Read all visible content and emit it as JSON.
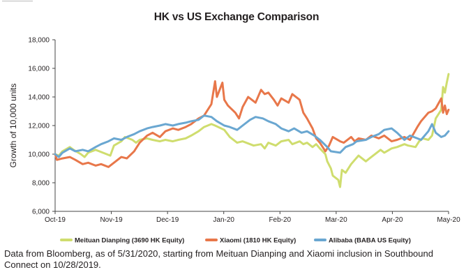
{
  "chart_data": {
    "type": "line",
    "title": "HK vs US Exchange Comparison",
    "ylabel": "Growth of 10,000 units",
    "xlabel": "",
    "ylim": [
      6000,
      18000
    ],
    "yticks": [
      "6,000",
      "8,000",
      "10,000",
      "12,000",
      "14,000",
      "16,000",
      "18,000"
    ],
    "xticks": [
      "Oct-19",
      "Nov-19",
      "Dec-19",
      "Jan-20",
      "Feb-20",
      "Mar-20",
      "Apr-20",
      "May-20"
    ],
    "x_start": "2019-10-28",
    "x_end": "2020-05-29",
    "legend_position": "bottom",
    "grid": false,
    "series": [
      {
        "name": "Meituan Dianping (3690 HK Equity)",
        "color": "#cfdd6e",
        "points": [
          [
            "2019-10-28",
            10000
          ],
          [
            "2019-10-30",
            9900
          ],
          [
            "2019-11-01",
            10200
          ],
          [
            "2019-11-05",
            10500
          ],
          [
            "2019-11-07",
            10300
          ],
          [
            "2019-11-11",
            10000
          ],
          [
            "2019-11-13",
            9800
          ],
          [
            "2019-11-15",
            10100
          ],
          [
            "2019-11-19",
            10300
          ],
          [
            "2019-11-21",
            10200
          ],
          [
            "2019-11-25",
            10000
          ],
          [
            "2019-11-27",
            9900
          ],
          [
            "2019-11-29",
            10600
          ],
          [
            "2019-12-03",
            10900
          ],
          [
            "2019-12-05",
            11200
          ],
          [
            "2019-12-09",
            11000
          ],
          [
            "2019-12-11",
            10800
          ],
          [
            "2019-12-13",
            11000
          ],
          [
            "2019-12-17",
            11100
          ],
          [
            "2019-12-20",
            11000
          ],
          [
            "2019-12-24",
            10900
          ],
          [
            "2019-12-27",
            11000
          ],
          [
            "2019-12-31",
            10900
          ],
          [
            "2020-01-03",
            11000
          ],
          [
            "2020-01-07",
            11100
          ],
          [
            "2020-01-10",
            11300
          ],
          [
            "2020-01-14",
            11600
          ],
          [
            "2020-01-17",
            11900
          ],
          [
            "2020-01-21",
            12100
          ],
          [
            "2020-01-23",
            12000
          ],
          [
            "2020-01-28",
            11700
          ],
          [
            "2020-01-31",
            11200
          ],
          [
            "2020-02-04",
            10800
          ],
          [
            "2020-02-07",
            10900
          ],
          [
            "2020-02-11",
            10700
          ],
          [
            "2020-02-13",
            10600
          ],
          [
            "2020-02-17",
            10700
          ],
          [
            "2020-02-19",
            10400
          ],
          [
            "2020-02-21",
            10800
          ],
          [
            "2020-02-25",
            10600
          ],
          [
            "2020-02-28",
            10900
          ],
          [
            "2020-03-03",
            11000
          ],
          [
            "2020-03-05",
            10700
          ],
          [
            "2020-03-09",
            10900
          ],
          [
            "2020-03-11",
            10700
          ],
          [
            "2020-03-13",
            10800
          ],
          [
            "2020-03-16",
            10500
          ],
          [
            "2020-03-18",
            10700
          ],
          [
            "2020-03-20",
            10400
          ],
          [
            "2020-03-23",
            10000
          ],
          [
            "2020-03-24",
            9500
          ],
          [
            "2020-03-26",
            9000
          ],
          [
            "2020-03-27",
            8500
          ],
          [
            "2020-03-30",
            8200
          ],
          [
            "2020-03-31",
            7700
          ],
          [
            "2020-04-01",
            8900
          ],
          [
            "2020-04-03",
            8700
          ],
          [
            "2020-04-06",
            9300
          ],
          [
            "2020-04-08",
            9600
          ],
          [
            "2020-04-10",
            9900
          ],
          [
            "2020-04-14",
            9500
          ],
          [
            "2020-04-16",
            9700
          ],
          [
            "2020-04-20",
            10100
          ],
          [
            "2020-04-22",
            10300
          ],
          [
            "2020-04-24",
            10100
          ],
          [
            "2020-04-28",
            10400
          ],
          [
            "2020-05-01",
            10500
          ],
          [
            "2020-05-05",
            10700
          ],
          [
            "2020-05-07",
            10600
          ],
          [
            "2020-05-11",
            10500
          ],
          [
            "2020-05-13",
            10900
          ],
          [
            "2020-05-15",
            11100
          ],
          [
            "2020-05-18",
            11000
          ],
          [
            "2020-05-20",
            11300
          ],
          [
            "2020-05-22",
            12500
          ],
          [
            "2020-05-25",
            13100
          ],
          [
            "2020-05-26",
            14700
          ],
          [
            "2020-05-27",
            14300
          ],
          [
            "2020-05-28",
            15000
          ],
          [
            "2020-05-29",
            15600
          ]
        ]
      },
      {
        "name": "Xiaomi (1810 HK Equity)",
        "color": "#e8774a",
        "points": [
          [
            "2019-10-28",
            10000
          ],
          [
            "2019-10-29",
            9600
          ],
          [
            "2019-11-01",
            9700
          ],
          [
            "2019-11-05",
            9800
          ],
          [
            "2019-11-08",
            9600
          ],
          [
            "2019-11-12",
            9300
          ],
          [
            "2019-11-15",
            9400
          ],
          [
            "2019-11-19",
            9200
          ],
          [
            "2019-11-22",
            9300
          ],
          [
            "2019-11-26",
            9100
          ],
          [
            "2019-11-29",
            9400
          ],
          [
            "2019-12-03",
            9800
          ],
          [
            "2019-12-06",
            9700
          ],
          [
            "2019-12-10",
            10200
          ],
          [
            "2019-12-13",
            10800
          ],
          [
            "2019-12-17",
            11300
          ],
          [
            "2019-12-20",
            11500
          ],
          [
            "2019-12-24",
            11200
          ],
          [
            "2019-12-27",
            11600
          ],
          [
            "2019-12-31",
            11800
          ],
          [
            "2020-01-03",
            11700
          ],
          [
            "2020-01-07",
            11900
          ],
          [
            "2020-01-10",
            12100
          ],
          [
            "2020-01-14",
            12500
          ],
          [
            "2020-01-17",
            12700
          ],
          [
            "2020-01-21",
            13500
          ],
          [
            "2020-01-23",
            15100
          ],
          [
            "2020-01-24",
            14000
          ],
          [
            "2020-01-27",
            15000
          ],
          [
            "2020-01-28",
            13800
          ],
          [
            "2020-01-30",
            13400
          ],
          [
            "2020-02-03",
            12900
          ],
          [
            "2020-02-05",
            12500
          ],
          [
            "2020-02-07",
            13300
          ],
          [
            "2020-02-10",
            14000
          ],
          [
            "2020-02-12",
            13800
          ],
          [
            "2020-02-14",
            13600
          ],
          [
            "2020-02-17",
            14500
          ],
          [
            "2020-02-19",
            14200
          ],
          [
            "2020-02-21",
            14300
          ],
          [
            "2020-02-24",
            13800
          ],
          [
            "2020-02-26",
            13400
          ],
          [
            "2020-02-28",
            13900
          ],
          [
            "2020-03-03",
            13600
          ],
          [
            "2020-03-05",
            14200
          ],
          [
            "2020-03-09",
            13800
          ],
          [
            "2020-03-11",
            12900
          ],
          [
            "2020-03-13",
            12500
          ],
          [
            "2020-03-16",
            11800
          ],
          [
            "2020-03-18",
            11100
          ],
          [
            "2020-03-20",
            10800
          ],
          [
            "2020-03-23",
            10200
          ],
          [
            "2020-03-25",
            10600
          ],
          [
            "2020-03-27",
            11200
          ],
          [
            "2020-03-31",
            10900
          ],
          [
            "2020-04-02",
            10800
          ],
          [
            "2020-04-06",
            11200
          ],
          [
            "2020-04-08",
            10900
          ],
          [
            "2020-04-10",
            11100
          ],
          [
            "2020-04-14",
            11000
          ],
          [
            "2020-04-17",
            11300
          ],
          [
            "2020-04-21",
            11100
          ],
          [
            "2020-04-24",
            11300
          ],
          [
            "2020-04-28",
            10900
          ],
          [
            "2020-05-01",
            11000
          ],
          [
            "2020-05-05",
            11200
          ],
          [
            "2020-05-08",
            11000
          ],
          [
            "2020-05-12",
            11900
          ],
          [
            "2020-05-14",
            12300
          ],
          [
            "2020-05-18",
            12900
          ],
          [
            "2020-05-20",
            13000
          ],
          [
            "2020-05-22",
            13200
          ],
          [
            "2020-05-25",
            13900
          ],
          [
            "2020-05-26",
            12900
          ],
          [
            "2020-05-27",
            13400
          ],
          [
            "2020-05-28",
            12800
          ],
          [
            "2020-05-29",
            13100
          ]
        ]
      },
      {
        "name": "Alibaba (BABA US Equity)",
        "color": "#6aa7d1",
        "points": [
          [
            "2019-10-28",
            10000
          ],
          [
            "2019-10-30",
            9800
          ],
          [
            "2019-11-01",
            10100
          ],
          [
            "2019-11-05",
            10400
          ],
          [
            "2019-11-08",
            10200
          ],
          [
            "2019-11-12",
            10300
          ],
          [
            "2019-11-15",
            10200
          ],
          [
            "2019-11-19",
            10500
          ],
          [
            "2019-11-22",
            10700
          ],
          [
            "2019-11-26",
            10900
          ],
          [
            "2019-11-29",
            11100
          ],
          [
            "2019-12-03",
            11000
          ],
          [
            "2019-12-06",
            11200
          ],
          [
            "2019-12-10",
            11400
          ],
          [
            "2019-12-13",
            11600
          ],
          [
            "2019-12-17",
            11800
          ],
          [
            "2019-12-20",
            11900
          ],
          [
            "2019-12-24",
            12000
          ],
          [
            "2019-12-27",
            12100
          ],
          [
            "2019-12-31",
            12000
          ],
          [
            "2020-01-03",
            12100
          ],
          [
            "2020-01-07",
            12200
          ],
          [
            "2020-01-10",
            12300
          ],
          [
            "2020-01-14",
            12400
          ],
          [
            "2020-01-17",
            12700
          ],
          [
            "2020-01-21",
            12600
          ],
          [
            "2020-01-24",
            12300
          ],
          [
            "2020-01-28",
            12000
          ],
          [
            "2020-01-31",
            11900
          ],
          [
            "2020-02-04",
            11700
          ],
          [
            "2020-02-07",
            12000
          ],
          [
            "2020-02-11",
            12400
          ],
          [
            "2020-02-14",
            12600
          ],
          [
            "2020-02-18",
            12500
          ],
          [
            "2020-02-21",
            12300
          ],
          [
            "2020-02-25",
            12100
          ],
          [
            "2020-02-28",
            11800
          ],
          [
            "2020-03-03",
            11600
          ],
          [
            "2020-03-06",
            11800
          ],
          [
            "2020-03-10",
            11500
          ],
          [
            "2020-03-13",
            11600
          ],
          [
            "2020-03-17",
            11300
          ],
          [
            "2020-03-20",
            11000
          ],
          [
            "2020-03-24",
            10500
          ],
          [
            "2020-03-26",
            10200
          ],
          [
            "2020-03-31",
            10100
          ],
          [
            "2020-04-03",
            10500
          ],
          [
            "2020-04-07",
            10700
          ],
          [
            "2020-04-09",
            10900
          ],
          [
            "2020-04-14",
            11000
          ],
          [
            "2020-04-17",
            11200
          ],
          [
            "2020-04-21",
            11400
          ],
          [
            "2020-04-24",
            11700
          ],
          [
            "2020-04-28",
            11800
          ],
          [
            "2020-05-01",
            11500
          ],
          [
            "2020-05-05",
            11000
          ],
          [
            "2020-05-08",
            11300
          ],
          [
            "2020-05-12",
            11100
          ],
          [
            "2020-05-14",
            11000
          ],
          [
            "2020-05-18",
            11600
          ],
          [
            "2020-05-20",
            12100
          ],
          [
            "2020-05-22",
            11500
          ],
          [
            "2020-05-25",
            11200
          ],
          [
            "2020-05-27",
            11300
          ],
          [
            "2020-05-29",
            11600
          ]
        ]
      }
    ]
  },
  "footnote": "Data from Bloomberg, as of 5/31/2020, starting from Meituan Dianping and Xiaomi inclusion in Southbound Connect on 10/28/2019."
}
